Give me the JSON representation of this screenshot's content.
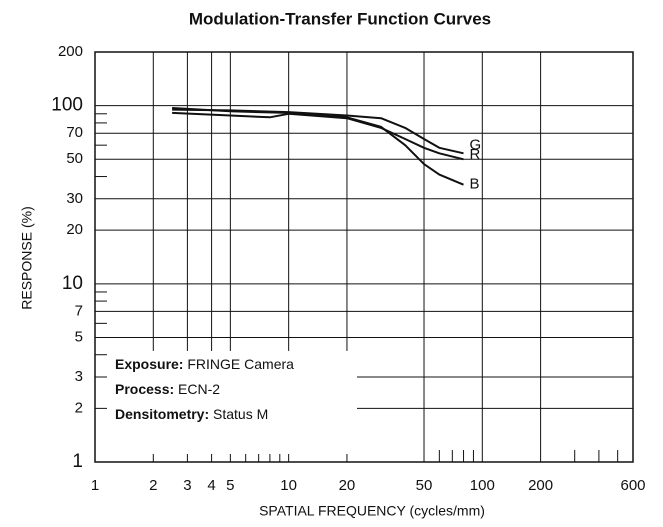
{
  "chart_data": {
    "type": "line",
    "title": "Modulation-Transfer Function Curves",
    "xlabel": "SPATIAL FREQUENCY (cycles/mm)",
    "ylabel": "RESPONSE (%)",
    "log_x": true,
    "log_y": true,
    "grid": true,
    "xlim": [
      1,
      600
    ],
    "ylim": [
      1,
      200
    ],
    "xticks": [
      1,
      2,
      3,
      4,
      5,
      10,
      20,
      50,
      100,
      200,
      600
    ],
    "yticks": [
      1,
      2,
      3,
      5,
      7,
      10,
      20,
      30,
      50,
      70,
      100,
      200
    ],
    "xminorticks": [
      6,
      7,
      8,
      9,
      60,
      70,
      80,
      90,
      300,
      400,
      500
    ],
    "yminorticks": [
      4,
      6,
      8,
      9,
      40,
      60,
      80,
      90
    ],
    "series": [
      {
        "name": "G",
        "color": "#111111",
        "x": [
          2.5,
          5,
          10,
          20,
          30,
          40,
          50,
          60,
          80
        ],
        "values": [
          95,
          94,
          92,
          88,
          85,
          75,
          65,
          58,
          54
        ]
      },
      {
        "name": "R",
        "color": "#111111",
        "x": [
          2.5,
          5,
          8,
          10,
          20,
          30,
          40,
          50,
          60,
          80
        ],
        "values": [
          91,
          88,
          86,
          90,
          85,
          75,
          65,
          58,
          54,
          50
        ]
      },
      {
        "name": "B",
        "color": "#111111",
        "x": [
          2.5,
          5,
          10,
          20,
          30,
          40,
          50,
          60,
          80
        ],
        "values": [
          97,
          93,
          91,
          86,
          76,
          60,
          47,
          41,
          36
        ]
      }
    ],
    "annotations": [
      {
        "label": "Exposure:",
        "text": "FRINGE Camera"
      },
      {
        "label": "Process:",
        "text": "ECN-2"
      },
      {
        "label": "Densitometry:",
        "text": "Status M"
      }
    ]
  }
}
